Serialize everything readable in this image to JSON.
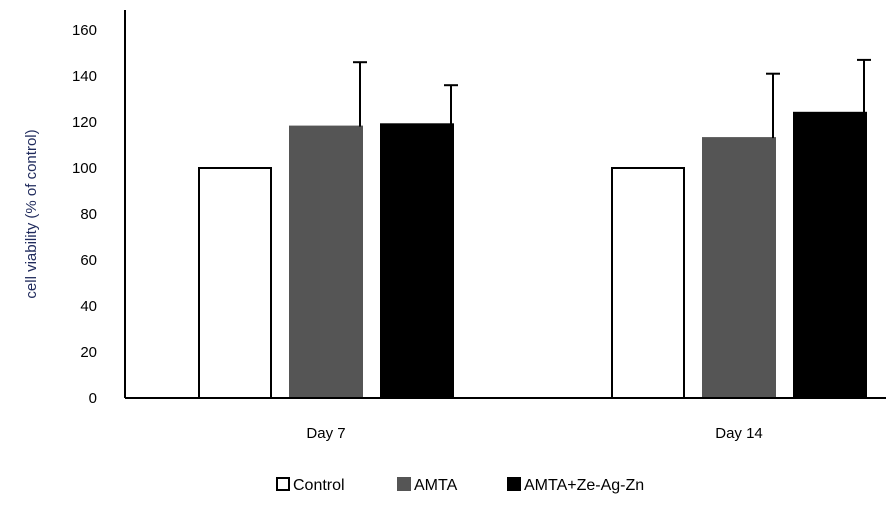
{
  "chart_data": {
    "type": "bar",
    "title": "",
    "xlabel": "",
    "ylabel": "cell viability (% of control)",
    "ylim": [
      0,
      160
    ],
    "yticks": [
      0,
      20,
      40,
      60,
      80,
      100,
      120,
      140,
      160
    ],
    "grid": false,
    "legend_position": "bottom",
    "categories": [
      "Day 7",
      "Day 14"
    ],
    "series": [
      {
        "name": "Control",
        "values": [
          100,
          100
        ],
        "errors": [
          0,
          0
        ],
        "color": "#ffffff",
        "stroke": "#000000"
      },
      {
        "name": "AMTA",
        "values": [
          118,
          113
        ],
        "errors": [
          28,
          28
        ],
        "color": "#555555",
        "stroke": "#555555"
      },
      {
        "name": "AMTA+Ze-Ag-Zn",
        "values": [
          119,
          124
        ],
        "errors": [
          17,
          23
        ],
        "color": "#000000",
        "stroke": "#000000"
      }
    ]
  }
}
